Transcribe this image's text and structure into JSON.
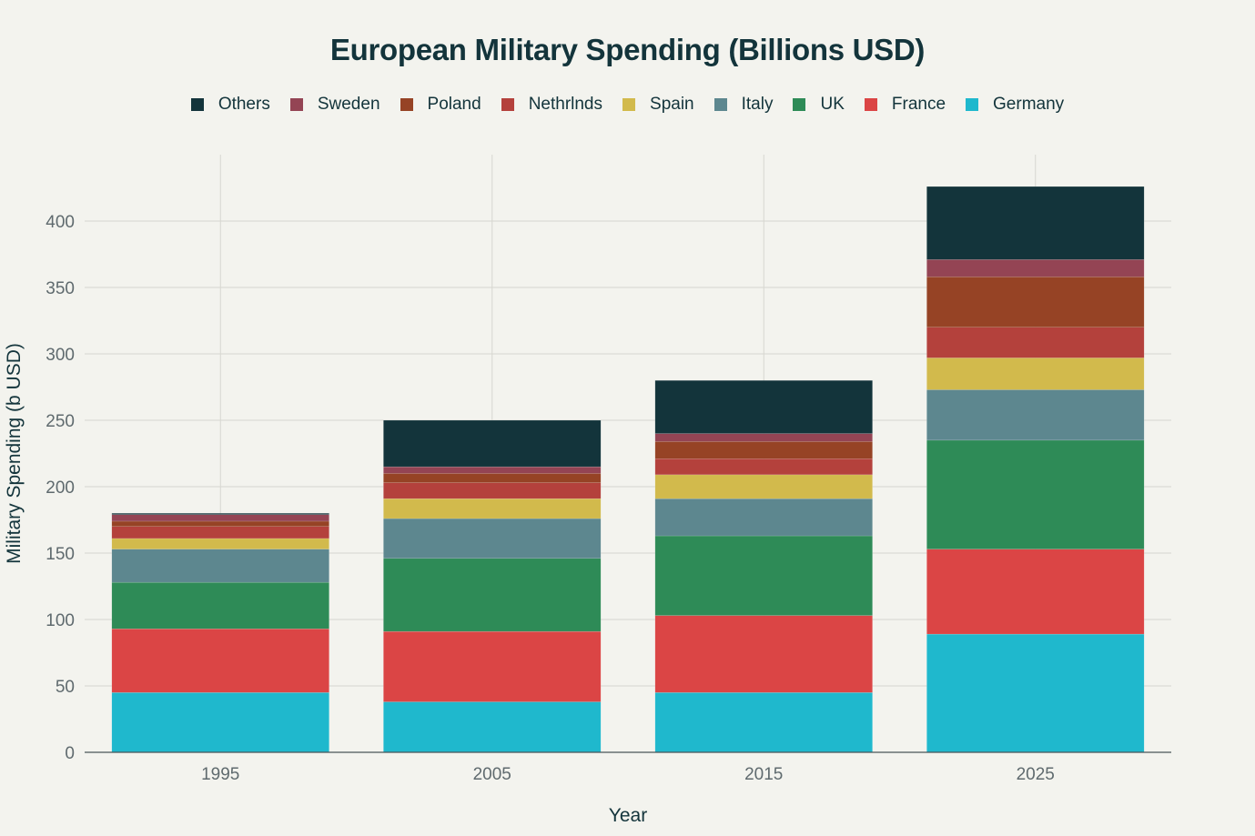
{
  "chart_data": {
    "type": "bar",
    "stacked": true,
    "title": "European Military Spending (Billions USD)",
    "xlabel": "Year",
    "ylabel": "Military Spending (b USD)",
    "categories": [
      "1995",
      "2005",
      "2015",
      "2025"
    ],
    "ylim": [
      0,
      450
    ],
    "yticks": [
      0,
      50,
      100,
      150,
      200,
      250,
      300,
      350,
      400
    ],
    "grid": true,
    "legend_position": "top-center",
    "series": [
      {
        "name": "Germany",
        "color": "#1fb8cd",
        "values": [
          45,
          38,
          45,
          89
        ]
      },
      {
        "name": "France",
        "color": "#db4545",
        "values": [
          48,
          53,
          58,
          64
        ]
      },
      {
        "name": "UK",
        "color": "#2e8b57",
        "values": [
          35,
          55,
          60,
          82
        ]
      },
      {
        "name": "Italy",
        "color": "#5d878f",
        "values": [
          25,
          30,
          28,
          38
        ]
      },
      {
        "name": "Spain",
        "color": "#d2ba4c",
        "values": [
          8,
          15,
          18,
          24
        ]
      },
      {
        "name": "Nethrlnds",
        "color": "#b4413c",
        "values": [
          9,
          12,
          12,
          23
        ]
      },
      {
        "name": "Poland",
        "color": "#964325",
        "values": [
          4,
          7,
          13,
          38
        ]
      },
      {
        "name": "Sweden",
        "color": "#944454",
        "values": [
          5,
          5,
          6,
          13
        ]
      },
      {
        "name": "Others",
        "color": "#13343b",
        "values": [
          1,
          35,
          40,
          55
        ]
      }
    ]
  }
}
